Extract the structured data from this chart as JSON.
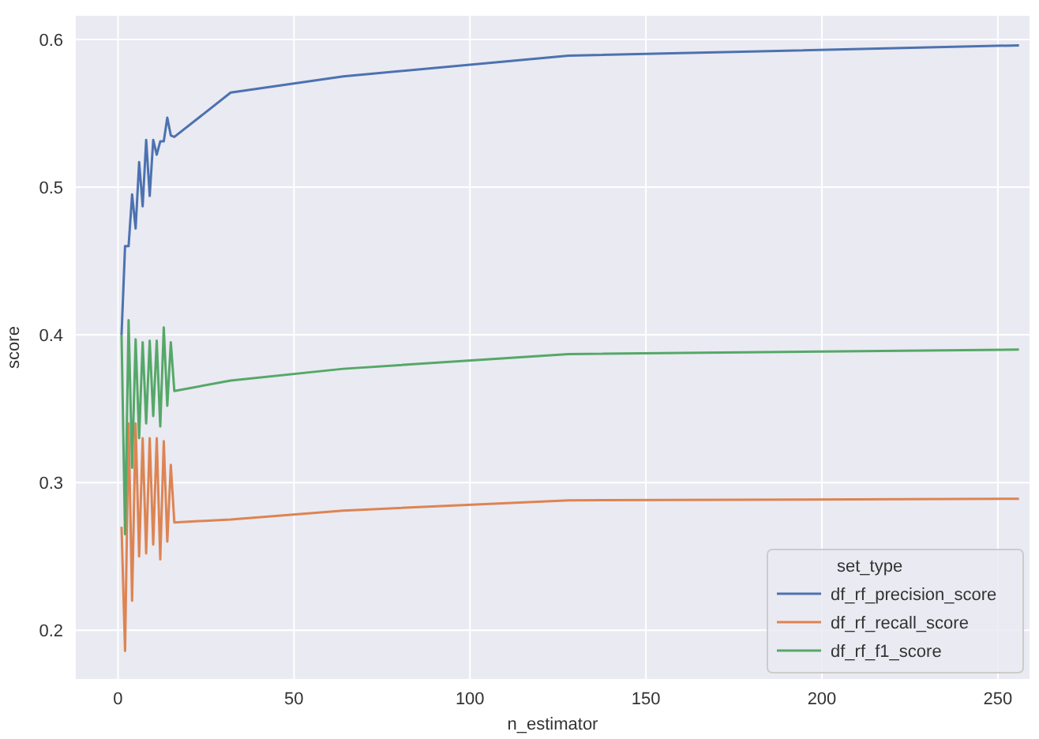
{
  "chart_data": {
    "type": "line",
    "xlabel": "n_estimator",
    "ylabel": "score",
    "legend_title": "set_type",
    "x": [
      1,
      2,
      3,
      4,
      5,
      6,
      7,
      8,
      9,
      10,
      11,
      12,
      13,
      14,
      15,
      16,
      32,
      64,
      128,
      256
    ],
    "series": [
      {
        "name": "df_rf_precision_score",
        "color": "#4c72b0",
        "values": [
          0.4,
          0.46,
          0.46,
          0.495,
          0.472,
          0.517,
          0.487,
          0.532,
          0.494,
          0.532,
          0.522,
          0.531,
          0.531,
          0.547,
          0.535,
          0.534,
          0.564,
          0.575,
          0.589,
          0.596
        ]
      },
      {
        "name": "df_rf_recall_score",
        "color": "#dd8452",
        "values": [
          0.27,
          0.186,
          0.34,
          0.22,
          0.34,
          0.25,
          0.33,
          0.252,
          0.33,
          0.258,
          0.33,
          0.248,
          0.328,
          0.26,
          0.312,
          0.273,
          0.275,
          0.281,
          0.288,
          0.289
        ]
      },
      {
        "name": "df_rf_f1_score",
        "color": "#55a868",
        "values": [
          0.4,
          0.265,
          0.41,
          0.31,
          0.397,
          0.33,
          0.395,
          0.34,
          0.396,
          0.345,
          0.396,
          0.338,
          0.405,
          0.352,
          0.395,
          0.362,
          0.369,
          0.377,
          0.387,
          0.39
        ]
      }
    ],
    "xlim": [
      -12,
      259
    ],
    "ylim": [
      0.167,
      0.616
    ],
    "xticks": [
      0,
      50,
      100,
      150,
      200,
      250
    ],
    "yticks": [
      {
        "value": 0.2,
        "label": "0.2"
      },
      {
        "value": 0.3,
        "label": "0.3"
      },
      {
        "value": 0.4,
        "label": "0.4"
      },
      {
        "value": 0.5,
        "label": "0.5"
      },
      {
        "value": 0.6,
        "label": "0.6"
      }
    ],
    "grid": true,
    "legend": "bottom right",
    "marker": "none",
    "line_style": "solid"
  }
}
